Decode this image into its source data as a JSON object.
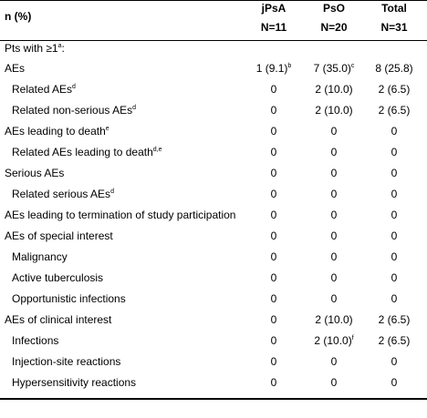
{
  "header": {
    "label": "n (%)",
    "columns": [
      {
        "name": "jPsA",
        "n": "N=11"
      },
      {
        "name": "PsO",
        "n": "N=20"
      },
      {
        "name": "Total",
        "n": "N=31"
      }
    ]
  },
  "section": {
    "text": "Pts with ≥1",
    "sup": "a",
    "tail": ":"
  },
  "rows": [
    {
      "label": {
        "text": "AEs"
      },
      "cells": [
        {
          "text": "1 (9.1)",
          "sup": "b"
        },
        {
          "text": "7 (35.0)",
          "sup": "c"
        },
        "8 (25.8)"
      ],
      "children": [
        {
          "label": {
            "text": "Related AEs",
            "sup": "d"
          },
          "cells": [
            "0",
            "2 (10.0)",
            "2 (6.5)"
          ]
        },
        {
          "label": {
            "text": "Related non-serious AEs",
            "sup": "d"
          },
          "cells": [
            "0",
            "2 (10.0)",
            "2 (6.5)"
          ]
        }
      ]
    },
    {
      "label": {
        "text": "AEs leading to death",
        "sup": "e"
      },
      "cells": [
        "0",
        "0",
        "0"
      ],
      "children": [
        {
          "label": {
            "text": "Related AEs leading to death",
            "sup": "d,e"
          },
          "cells": [
            "0",
            "0",
            "0"
          ]
        }
      ]
    },
    {
      "label": {
        "text": "Serious AEs"
      },
      "cells": [
        "0",
        "0",
        "0"
      ],
      "children": [
        {
          "label": {
            "text": "Related serious AEs",
            "sup": "d"
          },
          "cells": [
            "0",
            "0",
            "0"
          ]
        }
      ]
    },
    {
      "label": {
        "text": "AEs leading to termination of study participation"
      },
      "cells": [
        "0",
        "0",
        "0"
      ]
    },
    {
      "label": {
        "text": "AEs of special interest"
      },
      "cells": [
        "0",
        "0",
        "0"
      ],
      "children": [
        {
          "label": {
            "text": "Malignancy"
          },
          "cells": [
            "0",
            "0",
            "0"
          ]
        },
        {
          "label": {
            "text": "Active tuberculosis"
          },
          "cells": [
            "0",
            "0",
            "0"
          ]
        },
        {
          "label": {
            "text": "Opportunistic infections"
          },
          "cells": [
            "0",
            "0",
            "0"
          ]
        }
      ]
    },
    {
      "label": {
        "text": "AEs of clinical interest"
      },
      "cells": [
        "0",
        "2 (10.0)",
        "2 (6.5)"
      ],
      "children": [
        {
          "label": {
            "text": "Infections"
          },
          "cells": [
            "0",
            {
              "text": "2 (10.0)",
              "sup": "f"
            },
            "2 (6.5)"
          ]
        },
        {
          "label": {
            "text": "Injection-site reactions"
          },
          "cells": [
            "0",
            "0",
            "0"
          ]
        },
        {
          "label": {
            "text": "Hypersensitivity reactions"
          },
          "cells": [
            "0",
            "0",
            "0"
          ]
        }
      ]
    }
  ]
}
